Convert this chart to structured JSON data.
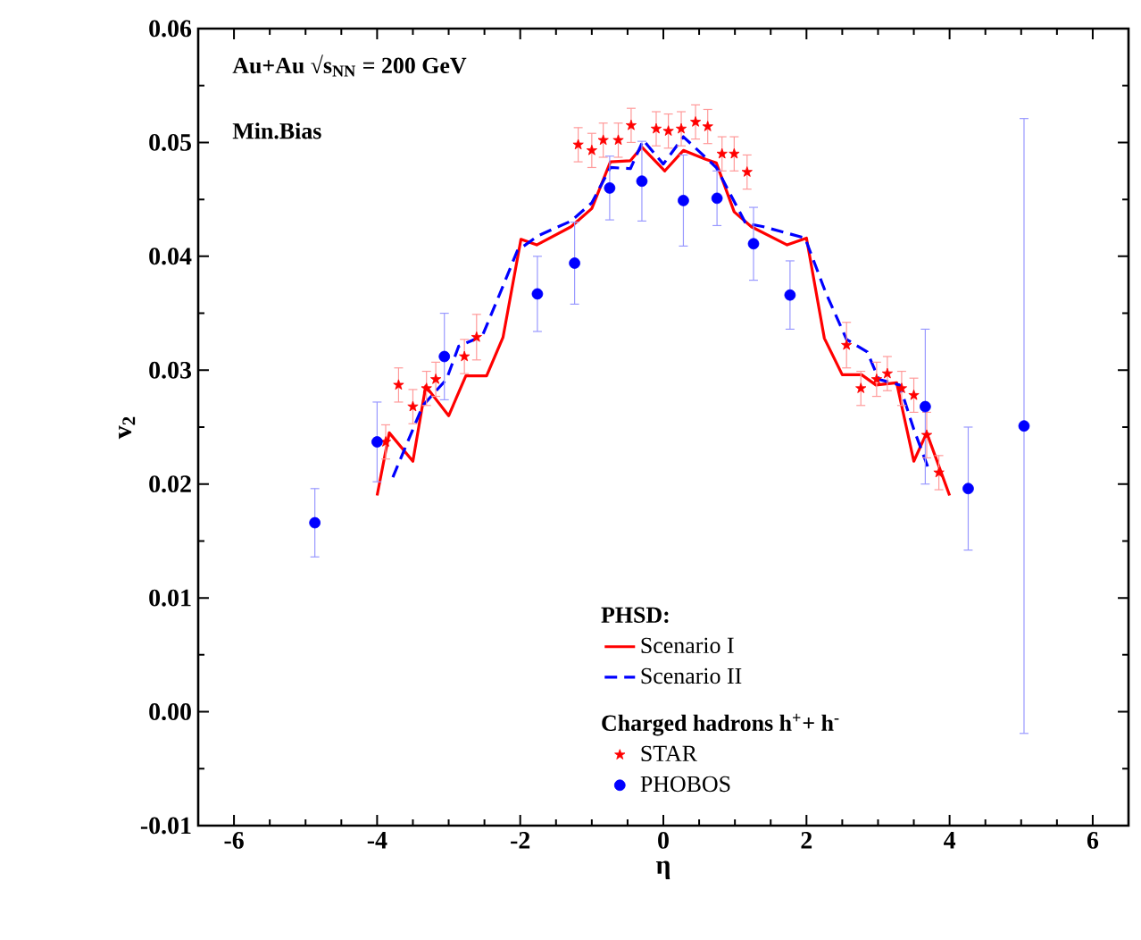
{
  "chart_data": {
    "type": "scatter",
    "xlabel": "η",
    "ylabel": "v$_{2}$",
    "xlim": [
      -6.5,
      6.5
    ],
    "ylim": [
      -0.01,
      0.06
    ],
    "xticks": [
      -6,
      -4,
      -2,
      0,
      2,
      4,
      6
    ],
    "yticks": [
      -0.01,
      {
        "value": 0,
        "label": "0.00"
      },
      0.01,
      0.02,
      0.03,
      0.04,
      0.05,
      0.06
    ],
    "legend": "bottom right",
    "annotations": [
      "Au+Au √s$_{NN}$ = 200 GeV",
      "Min.Bias",
      "PHSD:",
      "Charged hadrons h$^{+}$+ h$^{-}$"
    ],
    "series": [
      {
        "name": "Scenario I",
        "type": "line",
        "color": "#ff0000",
        "line_style": "solid",
        "marker": "none",
        "x": [
          -4.0,
          -3.83,
          -3.5,
          -3.32,
          -3.0,
          -2.76,
          -2.47,
          -2.24,
          -1.99,
          -1.77,
          -1.29,
          -1.0,
          -0.74,
          -0.46,
          -0.3,
          0.02,
          0.28,
          0.6,
          0.74,
          0.99,
          1.23,
          1.73,
          2.0,
          2.25,
          2.5,
          2.77,
          2.97,
          3.26,
          3.5,
          3.68,
          4.0
        ],
        "values": [
          0.019,
          0.0245,
          0.022,
          0.0286,
          0.026,
          0.0295,
          0.0295,
          0.0329,
          0.0415,
          0.041,
          0.0426,
          0.0442,
          0.0483,
          0.0484,
          0.0496,
          0.0475,
          0.0493,
          0.0485,
          0.0482,
          0.0439,
          0.0426,
          0.041,
          0.0416,
          0.0328,
          0.0296,
          0.0296,
          0.0287,
          0.0289,
          0.022,
          0.0245,
          0.019
        ]
      },
      {
        "name": "Scenario II",
        "type": "line",
        "color": "#0000ff",
        "line_style": "dashed",
        "marker": "none",
        "x": [
          -3.78,
          -3.36,
          -3.03,
          -2.86,
          -2.53,
          -2.24,
          -2.04,
          -1.75,
          -1.29,
          -1.0,
          -0.74,
          -0.46,
          -0.28,
          0.0,
          0.28,
          0.74,
          1.15,
          1.4,
          1.98,
          2.27,
          2.56,
          2.85,
          3.01,
          3.3,
          3.5,
          3.72
        ],
        "values": [
          0.0206,
          0.0269,
          0.0292,
          0.0321,
          0.033,
          0.0374,
          0.0405,
          0.0418,
          0.0431,
          0.0447,
          0.0478,
          0.0477,
          0.0502,
          0.0481,
          0.0505,
          0.0478,
          0.0429,
          0.0426,
          0.0416,
          0.0368,
          0.0327,
          0.0316,
          0.0292,
          0.0287,
          0.0248,
          0.0211
        ]
      },
      {
        "name": "STAR",
        "color": "#ff0000",
        "marker": "star",
        "x": [
          -3.88,
          -3.7,
          -3.5,
          -3.31,
          -3.18,
          -2.78,
          -2.61,
          -1.19,
          -1.0,
          -0.84,
          -0.63,
          -0.45,
          -0.1,
          0.07,
          0.25,
          0.45,
          0.62,
          0.82,
          0.99,
          1.17,
          2.56,
          2.76,
          2.98,
          3.13,
          3.33,
          3.5,
          3.68,
          3.85
        ],
        "values": [
          0.0237,
          0.0287,
          0.0268,
          0.0284,
          0.0292,
          0.0312,
          0.0329,
          0.0498,
          0.0493,
          0.0502,
          0.0502,
          0.0515,
          0.0512,
          0.051,
          0.0512,
          0.0518,
          0.0514,
          0.049,
          0.049,
          0.0474,
          0.0322,
          0.0284,
          0.0292,
          0.0297,
          0.0284,
          0.0278,
          0.0243,
          0.021
        ],
        "errors": [
          0.0015,
          0.0015,
          0.0015,
          0.0015,
          0.0015,
          0.0015,
          0.002,
          0.0015,
          0.0015,
          0.0015,
          0.0015,
          0.0015,
          0.0015,
          0.0015,
          0.0015,
          0.0015,
          0.0015,
          0.0015,
          0.0015,
          0.0015,
          0.002,
          0.0015,
          0.0015,
          0.0015,
          0.0015,
          0.0015,
          0.002,
          0.0015
        ]
      },
      {
        "name": "PHOBOS",
        "color": "#0000ff",
        "marker": "circle",
        "x": [
          -4.87,
          -4.0,
          -3.06,
          -1.76,
          -1.24,
          -0.75,
          -0.3,
          0.28,
          0.75,
          1.26,
          1.77,
          3.66,
          4.26,
          5.04
        ],
        "values": [
          0.0166,
          0.0237,
          0.0312,
          0.0367,
          0.0394,
          0.046,
          0.0466,
          0.0449,
          0.0451,
          0.0411,
          0.0366,
          0.0268,
          0.0196,
          0.0251
        ],
        "errors": [
          0.003,
          0.0035,
          0.0038,
          0.0033,
          0.0036,
          0.0028,
          0.0035,
          0.004,
          0.0024,
          0.0032,
          0.003,
          0.0068,
          0.0054,
          0.027
        ]
      }
    ]
  }
}
